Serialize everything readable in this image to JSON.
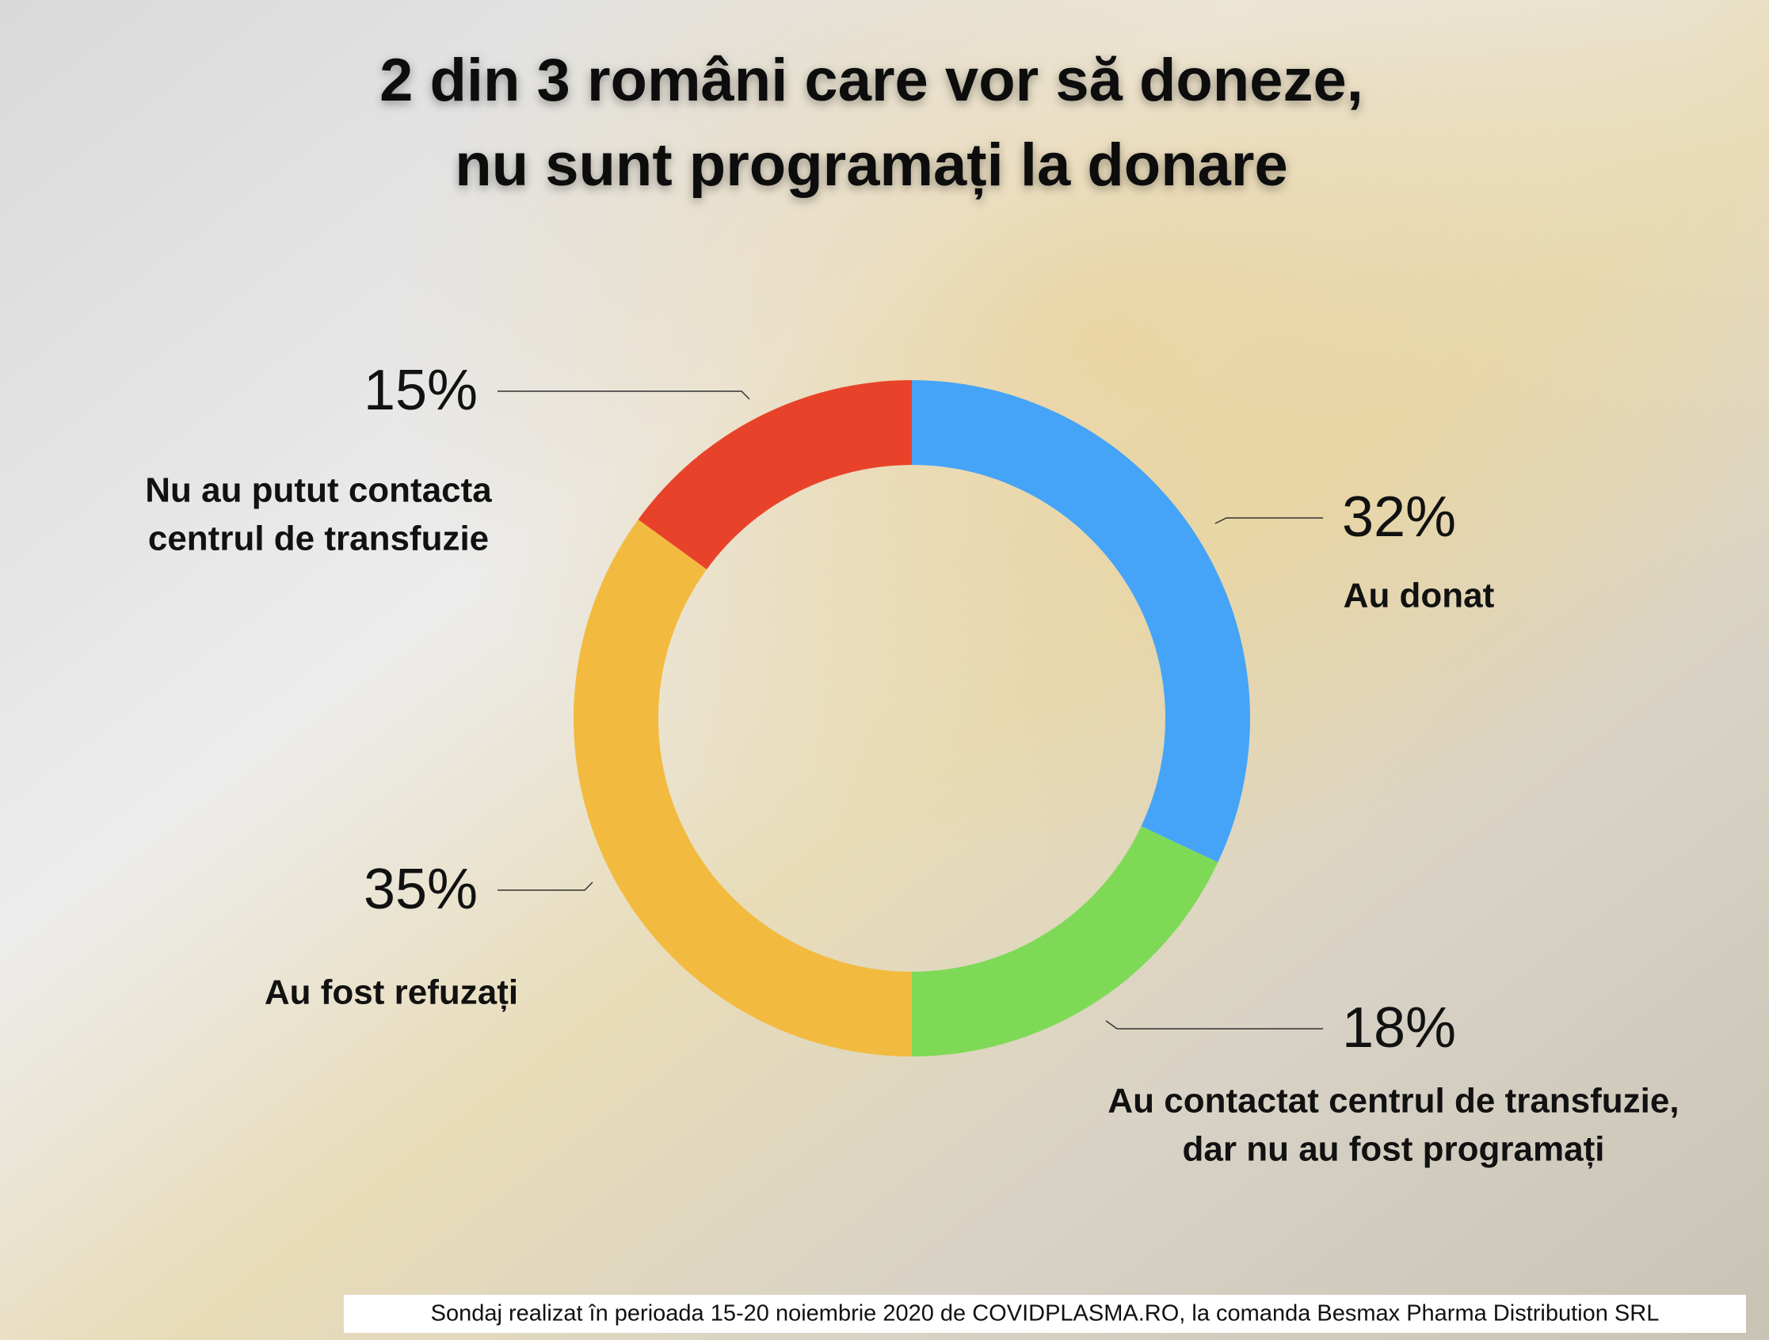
{
  "chart_data": {
    "type": "donut",
    "title": [
      "2 din 3 români care vor să doneze,",
      "nu sunt programați la donare"
    ],
    "categories": [
      [
        "Au donat"
      ],
      [
        "Au contactat centrul de transfuzie,",
        "dar nu au fost programați"
      ],
      [
        "Au fost refuzați"
      ],
      [
        "Nu au putut contacta",
        "centrul de transfuzie"
      ]
    ],
    "values": [
      32,
      18,
      35,
      15
    ],
    "value_labels": [
      "32%",
      "18%",
      "35%",
      "15%"
    ],
    "colors": [
      "#45a4f8",
      "#7ed957",
      "#f2bb40",
      "#e8432a"
    ],
    "source": "Sondaj realizat în perioada 15-20 noiembrie 2020 de COVIDPLASMA.RO, la comanda Besmax Pharma Distribution SRL"
  }
}
